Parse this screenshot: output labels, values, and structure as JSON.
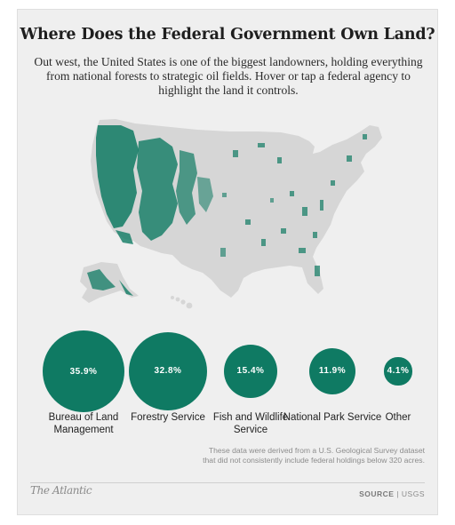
{
  "title": "Where Does the Federal Government Own Land?",
  "subtitle": "Out west, the United States is one of the biggest landowners, holding everything from national forests to strategic oil fields. Hover or tap a federal agency to highlight the land it controls.",
  "colors": {
    "land": "#0f7a63",
    "map_base": "#d6d6d6",
    "background": "#efefef"
  },
  "agencies": [
    {
      "label": "Bureau of Land Management",
      "percent": 35.9,
      "display": "35.9%"
    },
    {
      "label": "Forestry Service",
      "percent": 32.8,
      "display": "32.8%"
    },
    {
      "label": "Fish and Wildlife Service",
      "percent": 15.4,
      "display": "15.4%"
    },
    {
      "label": "National Park Service",
      "percent": 11.9,
      "display": "11.9%"
    },
    {
      "label": "Other",
      "percent": 4.1,
      "display": "4.1%"
    }
  ],
  "footnote": "These data were derived from a U.S. Geological Survey dataset that did not consistently include federal holdings below 320 acres.",
  "logo_text": "The Atlantic",
  "source_label": "SOURCE",
  "source_value": "USGS"
}
